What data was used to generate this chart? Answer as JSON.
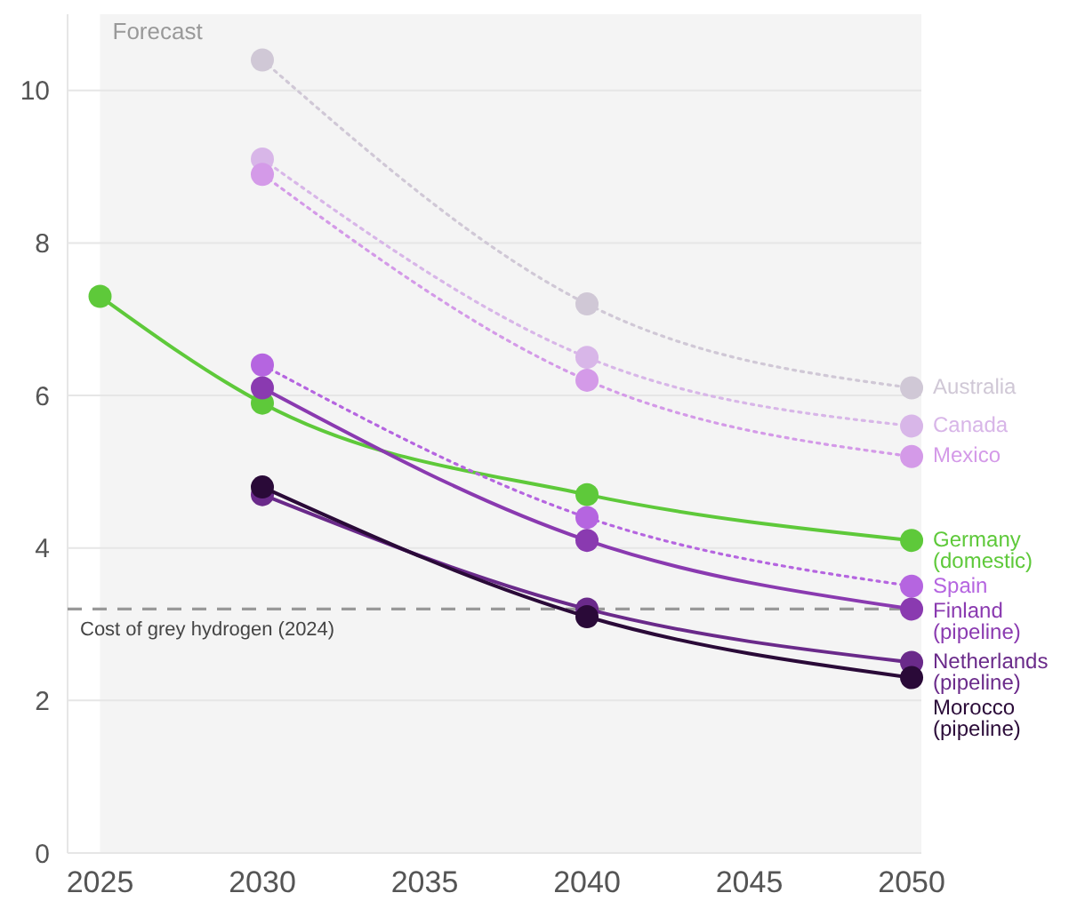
{
  "chart_data": {
    "type": "line",
    "x": [
      2030,
      2040,
      2050
    ],
    "xlim": [
      2024,
      2050.3
    ],
    "xticks": [
      2025,
      2030,
      2035,
      2040,
      2045,
      2050
    ],
    "ylim": [
      0,
      11
    ],
    "yticks": [
      0,
      2,
      4,
      6,
      8,
      10
    ],
    "grid": "y",
    "marker": "circle",
    "series": [
      {
        "name": "Australia",
        "color": "#d0c8d6",
        "line_style": "dotted",
        "values": [
          10.4,
          7.2,
          6.1
        ]
      },
      {
        "name": "Canada",
        "color": "#d8b6e8",
        "line_style": "dotted",
        "values": [
          9.1,
          6.5,
          5.6
        ]
      },
      {
        "name": "Mexico",
        "color": "#d49ae8",
        "line_style": "dotted",
        "values": [
          8.9,
          6.2,
          5.2
        ]
      },
      {
        "name": "Germany (domestic)",
        "color": "#5ec93a",
        "line_style": "solid",
        "x": [
          2025,
          2030,
          2040,
          2050
        ],
        "values": [
          7.3,
          5.9,
          4.7,
          4.1
        ]
      },
      {
        "name": "Spain",
        "color": "#b565e0",
        "line_style": "dotted",
        "values": [
          6.4,
          4.4,
          3.5
        ]
      },
      {
        "name": "Finland (pipeline)",
        "color": "#8a3ab0",
        "line_style": "solid",
        "values": [
          6.1,
          4.1,
          3.2
        ]
      },
      {
        "name": "Netherlands (pipeline)",
        "color": "#6a2a8a",
        "line_style": "solid",
        "values": [
          4.7,
          3.2,
          2.5
        ]
      },
      {
        "name": "Morocco (pipeline)",
        "color": "#2a0a38",
        "line_style": "solid",
        "values": [
          4.8,
          3.1,
          2.3
        ]
      }
    ],
    "ref_lines": [
      {
        "axis": "y",
        "value": 3.2,
        "label": "Cost of grey hydrogen (2024)",
        "color": "#999999",
        "line_style": "dashed"
      }
    ],
    "bands": [
      {
        "axis": "x",
        "from": 2025,
        "to": 2050.3,
        "label": "Forecast",
        "color": "#f4f4f4"
      }
    ]
  }
}
